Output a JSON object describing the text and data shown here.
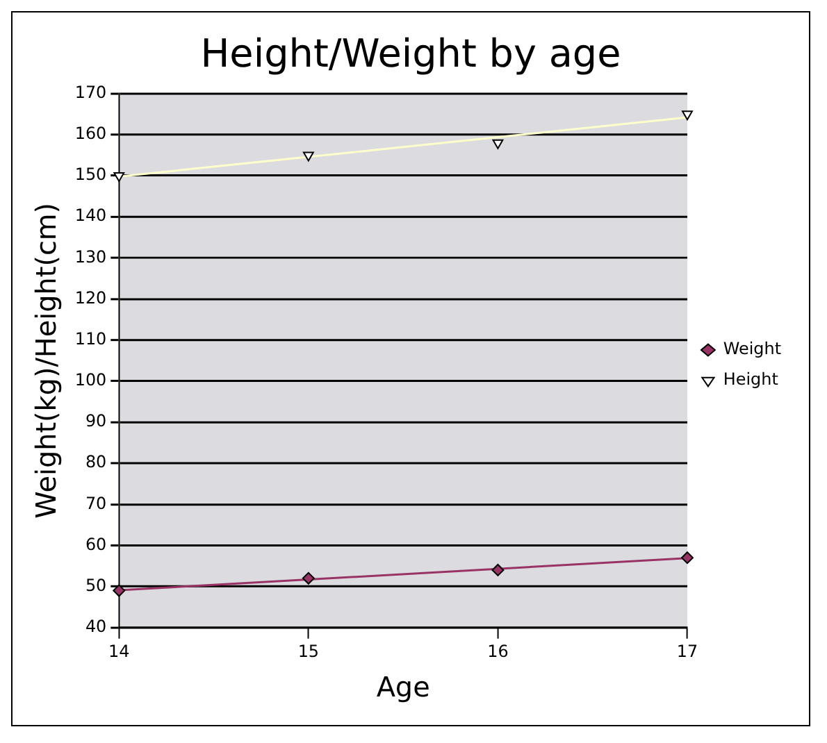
{
  "chart_data": {
    "type": "scatter",
    "title": "Height/Weight by age",
    "xlabel": "Age",
    "ylabel": "Weight(kg)/Height(cm)",
    "xlim": [
      14,
      17
    ],
    "xticks": [
      14,
      15,
      16,
      17
    ],
    "ylim": [
      40,
      170
    ],
    "yticks": [
      40,
      50,
      60,
      70,
      80,
      90,
      100,
      110,
      120,
      130,
      140,
      150,
      160,
      170
    ],
    "grid": "y",
    "legend": "right",
    "series": [
      {
        "name": "Weight",
        "marker": "diamond",
        "color": "#993366",
        "x": [
          14,
          15,
          16,
          17
        ],
        "values": [
          49,
          52,
          54,
          57
        ]
      },
      {
        "name": "Height",
        "marker": "triangle",
        "color": "#ffffff",
        "x": [
          14,
          15,
          16,
          17
        ],
        "values": [
          150,
          155,
          158,
          165
        ]
      },
      {
        "type": "line",
        "marker": "none",
        "color": "#993366",
        "x": [
          14,
          17
        ],
        "values": [
          49.1,
          56.9
        ]
      },
      {
        "type": "line",
        "marker": "none",
        "color": "#ffffcc",
        "x": [
          14,
          17
        ],
        "values": [
          149.8,
          164.2
        ]
      }
    ]
  }
}
